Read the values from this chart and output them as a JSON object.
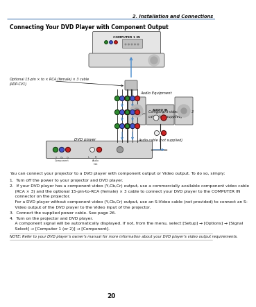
{
  "page_title": "2. Installation and Connections",
  "section_title": "Connecting Your DVD Player with Component Output",
  "page_number": "20",
  "bg_color": "#ffffff",
  "header_line_color": "#4a7cb5",
  "body_text": "You can connect your projector to a DVD player with component output or Video output. To do so, simply:",
  "step1": "1.  Turn off the power to your projector and DVD player.",
  "step2a": "2.  If your DVD player has a component video (Y,Cb,Cr) output, use a commercially available component video cable",
  "step2b": "    (RCA × 3) and the optional 15-pin-to-RCA (female) × 3 cable to connect your DVD player to the COMPUTER IN",
  "step2c": "    connector on the projector.",
  "step2d": "    For a DVD player without component video (Y,Cb,Cr) output, use an S-Video cable (not provided) to connect an S-",
  "step2e": "    Video output of the DVD player to the Video Input of the projector.",
  "step3": "3.  Connect the supplied power cable. See page 26.",
  "step4": "4.  Turn on the projector and DVD player.",
  "step4a": "    A component signal will be automatically displayed. If not, from the menu, select [Setup] → [Options] → [Signal",
  "step4b": "    Select] → [Computer 1 (or 2)] → [Component].",
  "note_text": "NOTE: Refer to your DVD player’s owner’s manual for more information about your DVD player’s video output requirements.",
  "label_optional_cable": "Optional 15-pin × to × RCA (female) × 3 cable\n(ADP-CV1)",
  "label_component_cable": "Component video RCA × 3\ncable (not supplied)",
  "label_dvd_player": "DVD player",
  "label_audio_equipment": "Audio Equipment",
  "label_audio_cable": "Audio cable (not supplied)",
  "label_computer1_in": "COMPUTER 1 IN",
  "label_audio_in": "AUDIO IN",
  "col_green": "#2d8a2d",
  "col_blue_conn": "#4455cc",
  "col_red": "#cc2222",
  "col_white": "#eeeeee",
  "col_arrow_blue": "#4488cc",
  "col_body_gray": "#e0e0e0",
  "col_dark": "#444444"
}
